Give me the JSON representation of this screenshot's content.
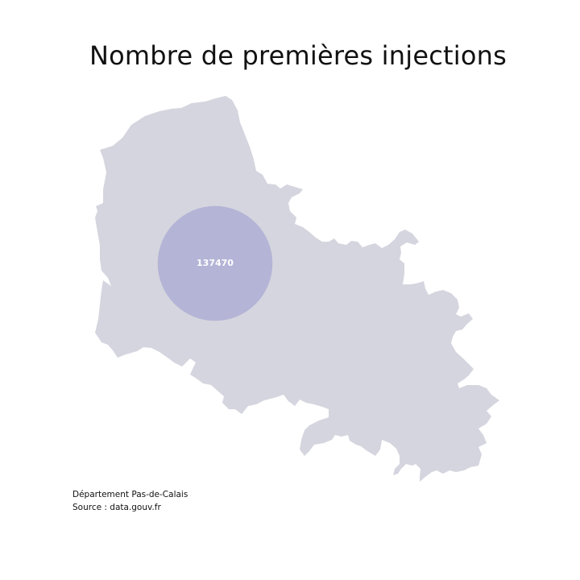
{
  "title": "Nombre de premières injections",
  "map": {
    "region": "Pas-de-Calais",
    "region_color": "#d5d5df",
    "bubble_color": "#b2b2d6"
  },
  "bubble": {
    "value": 137470,
    "label": "137470"
  },
  "footnote": {
    "line1": "Département Pas-de-Calais",
    "line2": "Source : data.gouv.fr"
  }
}
